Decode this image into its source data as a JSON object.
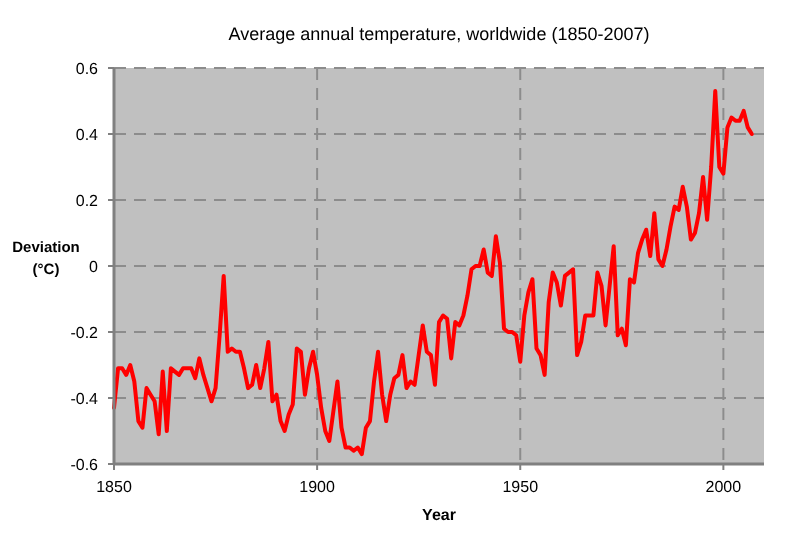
{
  "chart_data": {
    "type": "line",
    "title": "Average annual temperature, worldwide (1850-2007)",
    "xlabel": "Year",
    "ylabel": "Deviation (°C)",
    "x": [
      1850,
      1851,
      1852,
      1853,
      1854,
      1855,
      1856,
      1857,
      1858,
      1859,
      1860,
      1861,
      1862,
      1863,
      1864,
      1865,
      1866,
      1867,
      1868,
      1869,
      1870,
      1871,
      1872,
      1873,
      1874,
      1875,
      1876,
      1877,
      1878,
      1879,
      1880,
      1881,
      1882,
      1883,
      1884,
      1885,
      1886,
      1887,
      1888,
      1889,
      1890,
      1891,
      1892,
      1893,
      1894,
      1895,
      1896,
      1897,
      1898,
      1899,
      1900,
      1901,
      1902,
      1903,
      1904,
      1905,
      1906,
      1907,
      1908,
      1909,
      1910,
      1911,
      1912,
      1913,
      1914,
      1915,
      1916,
      1917,
      1918,
      1919,
      1920,
      1921,
      1922,
      1923,
      1924,
      1925,
      1926,
      1927,
      1928,
      1929,
      1930,
      1931,
      1932,
      1933,
      1934,
      1935,
      1936,
      1937,
      1938,
      1939,
      1940,
      1941,
      1942,
      1943,
      1944,
      1945,
      1946,
      1947,
      1948,
      1949,
      1950,
      1951,
      1952,
      1953,
      1954,
      1955,
      1956,
      1957,
      1958,
      1959,
      1960,
      1961,
      1962,
      1963,
      1964,
      1965,
      1966,
      1967,
      1968,
      1969,
      1970,
      1971,
      1972,
      1973,
      1974,
      1975,
      1976,
      1977,
      1978,
      1979,
      1980,
      1981,
      1982,
      1983,
      1984,
      1985,
      1986,
      1987,
      1988,
      1989,
      1990,
      1991,
      1992,
      1993,
      1994,
      1995,
      1996,
      1997,
      1998,
      1999,
      2000,
      2001,
      2002,
      2003,
      2004,
      2005,
      2006,
      2007
    ],
    "series": [
      {
        "color": "#ff0000",
        "values": [
          -0.43,
          -0.31,
          -0.31,
          -0.33,
          -0.3,
          -0.35,
          -0.47,
          -0.49,
          -0.37,
          -0.39,
          -0.41,
          -0.51,
          -0.32,
          -0.5,
          -0.31,
          -0.32,
          -0.33,
          -0.31,
          -0.31,
          -0.31,
          -0.34,
          -0.28,
          -0.33,
          -0.37,
          -0.41,
          -0.37,
          -0.21,
          -0.03,
          -0.26,
          -0.25,
          -0.26,
          -0.26,
          -0.31,
          -0.37,
          -0.36,
          -0.3,
          -0.37,
          -0.31,
          -0.23,
          -0.41,
          -0.39,
          -0.47,
          -0.5,
          -0.45,
          -0.42,
          -0.25,
          -0.26,
          -0.39,
          -0.31,
          -0.26,
          -0.33,
          -0.43,
          -0.5,
          -0.53,
          -0.44,
          -0.35,
          -0.49,
          -0.55,
          -0.55,
          -0.56,
          -0.55,
          -0.57,
          -0.49,
          -0.47,
          -0.35,
          -0.26,
          -0.39,
          -0.47,
          -0.39,
          -0.34,
          -0.33,
          -0.27,
          -0.37,
          -0.35,
          -0.36,
          -0.27,
          -0.18,
          -0.26,
          -0.27,
          -0.36,
          -0.17,
          -0.15,
          -0.16,
          -0.28,
          -0.17,
          -0.18,
          -0.15,
          -0.09,
          -0.01,
          0,
          0,
          0.05,
          -0.02,
          -0.03,
          0.09,
          0.01,
          -0.19,
          -0.2,
          -0.2,
          -0.21,
          -0.29,
          -0.15,
          -0.08,
          -0.04,
          -0.25,
          -0.27,
          -0.33,
          -0.11,
          -0.02,
          -0.05,
          -0.12,
          -0.03,
          -0.02,
          -0.01,
          -0.27,
          -0.23,
          -0.15,
          -0.15,
          -0.15,
          -0.02,
          -0.06,
          -0.18,
          -0.06,
          0.06,
          -0.21,
          -0.19,
          -0.24,
          -0.04,
          -0.05,
          0.04,
          0.08,
          0.11,
          0.03,
          0.16,
          0.02,
          0,
          0.05,
          0.12,
          0.18,
          0.17,
          0.24,
          0.18,
          0.08,
          0.1,
          0.16,
          0.27,
          0.14,
          0.3,
          0.53,
          0.3,
          0.28,
          0.42,
          0.45,
          0.44,
          0.44,
          0.47,
          0.42,
          0.4
        ]
      }
    ],
    "xlim": [
      1850,
      2010
    ],
    "xticks": [
      1850,
      1900,
      1950,
      2000
    ],
    "ylim": [
      -0.6,
      0.6
    ],
    "yticks": [
      -0.6,
      -0.4,
      -0.2,
      0,
      0.2,
      0.4,
      0.6
    ],
    "grid": true,
    "line_style": "solid",
    "marker": "none"
  }
}
